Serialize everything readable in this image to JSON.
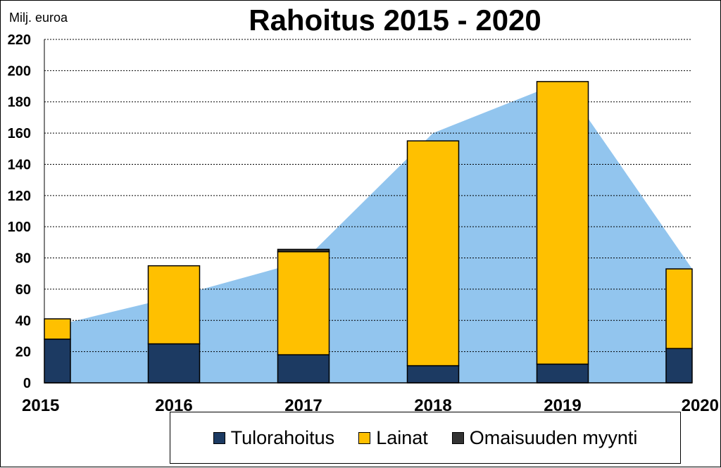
{
  "chart_data": {
    "type": "bar",
    "title": "Rahoitus 2015 - 2020",
    "ylabel": "Milj. euroa",
    "ylim": [
      0,
      220
    ],
    "yticks": [
      0,
      20,
      40,
      60,
      80,
      100,
      120,
      140,
      160,
      180,
      200,
      220
    ],
    "categories": [
      "2015",
      "2016",
      "2017",
      "2018",
      "2019",
      "2020"
    ],
    "stacked": true,
    "grid": true,
    "legend_position": "bottom",
    "series": [
      {
        "name": "Tulorahoitus",
        "color": "#1c3a62",
        "values": [
          28,
          25,
          18,
          11,
          12,
          22
        ]
      },
      {
        "name": "Lainat",
        "color": "#ffc000",
        "values": [
          13,
          50,
          66,
          144,
          181,
          51
        ]
      },
      {
        "name": "Omaisuuden myynti",
        "color": "#333333",
        "values": [
          0,
          0,
          1.5,
          0,
          0,
          0
        ]
      }
    ],
    "area": {
      "color": "#92c5ee",
      "values": [
        35,
        55,
        78,
        160,
        193,
        73
      ]
    }
  },
  "legend": {
    "items": [
      {
        "label": "Tulorahoitus",
        "color": "#1c3a62"
      },
      {
        "label": "Lainat",
        "color": "#ffc000"
      },
      {
        "label": "Omaisuuden myynti",
        "color": "#333333"
      }
    ]
  }
}
